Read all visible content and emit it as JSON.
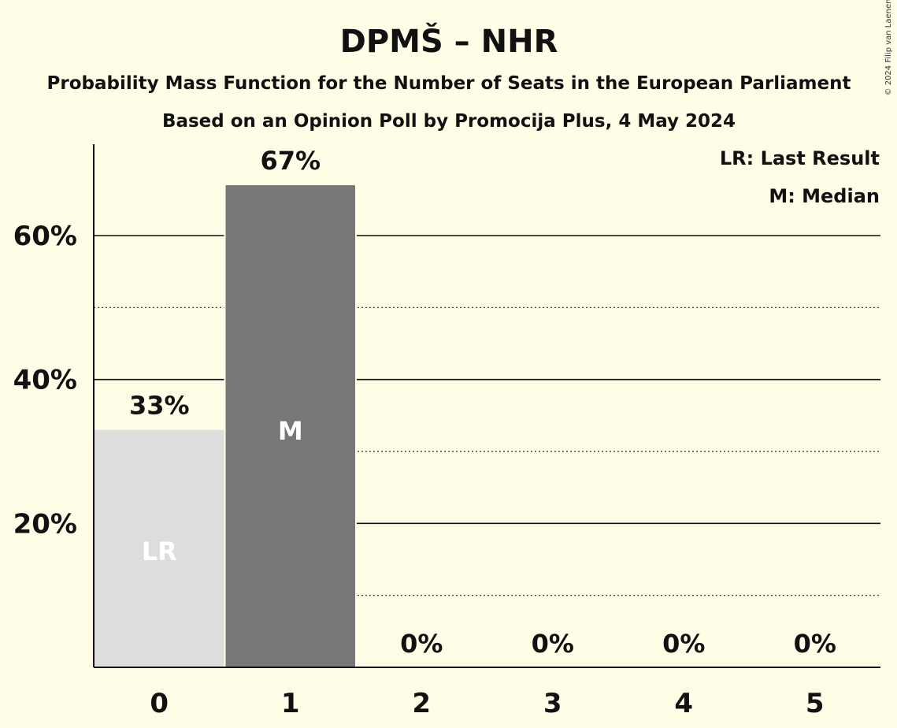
{
  "chart_data": {
    "type": "bar",
    "title": "DPMŠ – NHR",
    "subtitle_1": "Probability Mass Function for the Number of Seats in the European Parliament",
    "subtitle_2": "Based on an Opinion Poll by Promocija Plus, 4 May 2024",
    "categories": [
      "0",
      "1",
      "2",
      "3",
      "4",
      "5"
    ],
    "values": [
      33,
      67,
      0,
      0,
      0,
      0
    ],
    "value_labels": [
      "33%",
      "67%",
      "0%",
      "0%",
      "0%",
      "0%"
    ],
    "bar_markers": [
      "LR",
      "M",
      "",
      "",
      "",
      ""
    ],
    "bar_colors": [
      "#dddddd",
      "#777777",
      "#777777",
      "#777777",
      "#777777",
      "#777777"
    ],
    "marker_colors": [
      "#ffffff",
      "#ffffff",
      "#ffffff",
      "#ffffff",
      "#ffffff",
      "#ffffff"
    ],
    "ylim": [
      0,
      72.7
    ],
    "yticks": [
      20,
      40,
      60
    ],
    "ytick_labels": [
      "20%",
      "40%",
      "60%"
    ],
    "minor_gridlines": [
      10,
      30,
      50
    ],
    "legend": [
      "LR: Last Result",
      "M: Median"
    ],
    "legend_position": "top-right",
    "credit": "© 2024 Filip van Laenen",
    "background": "#fffde6"
  }
}
